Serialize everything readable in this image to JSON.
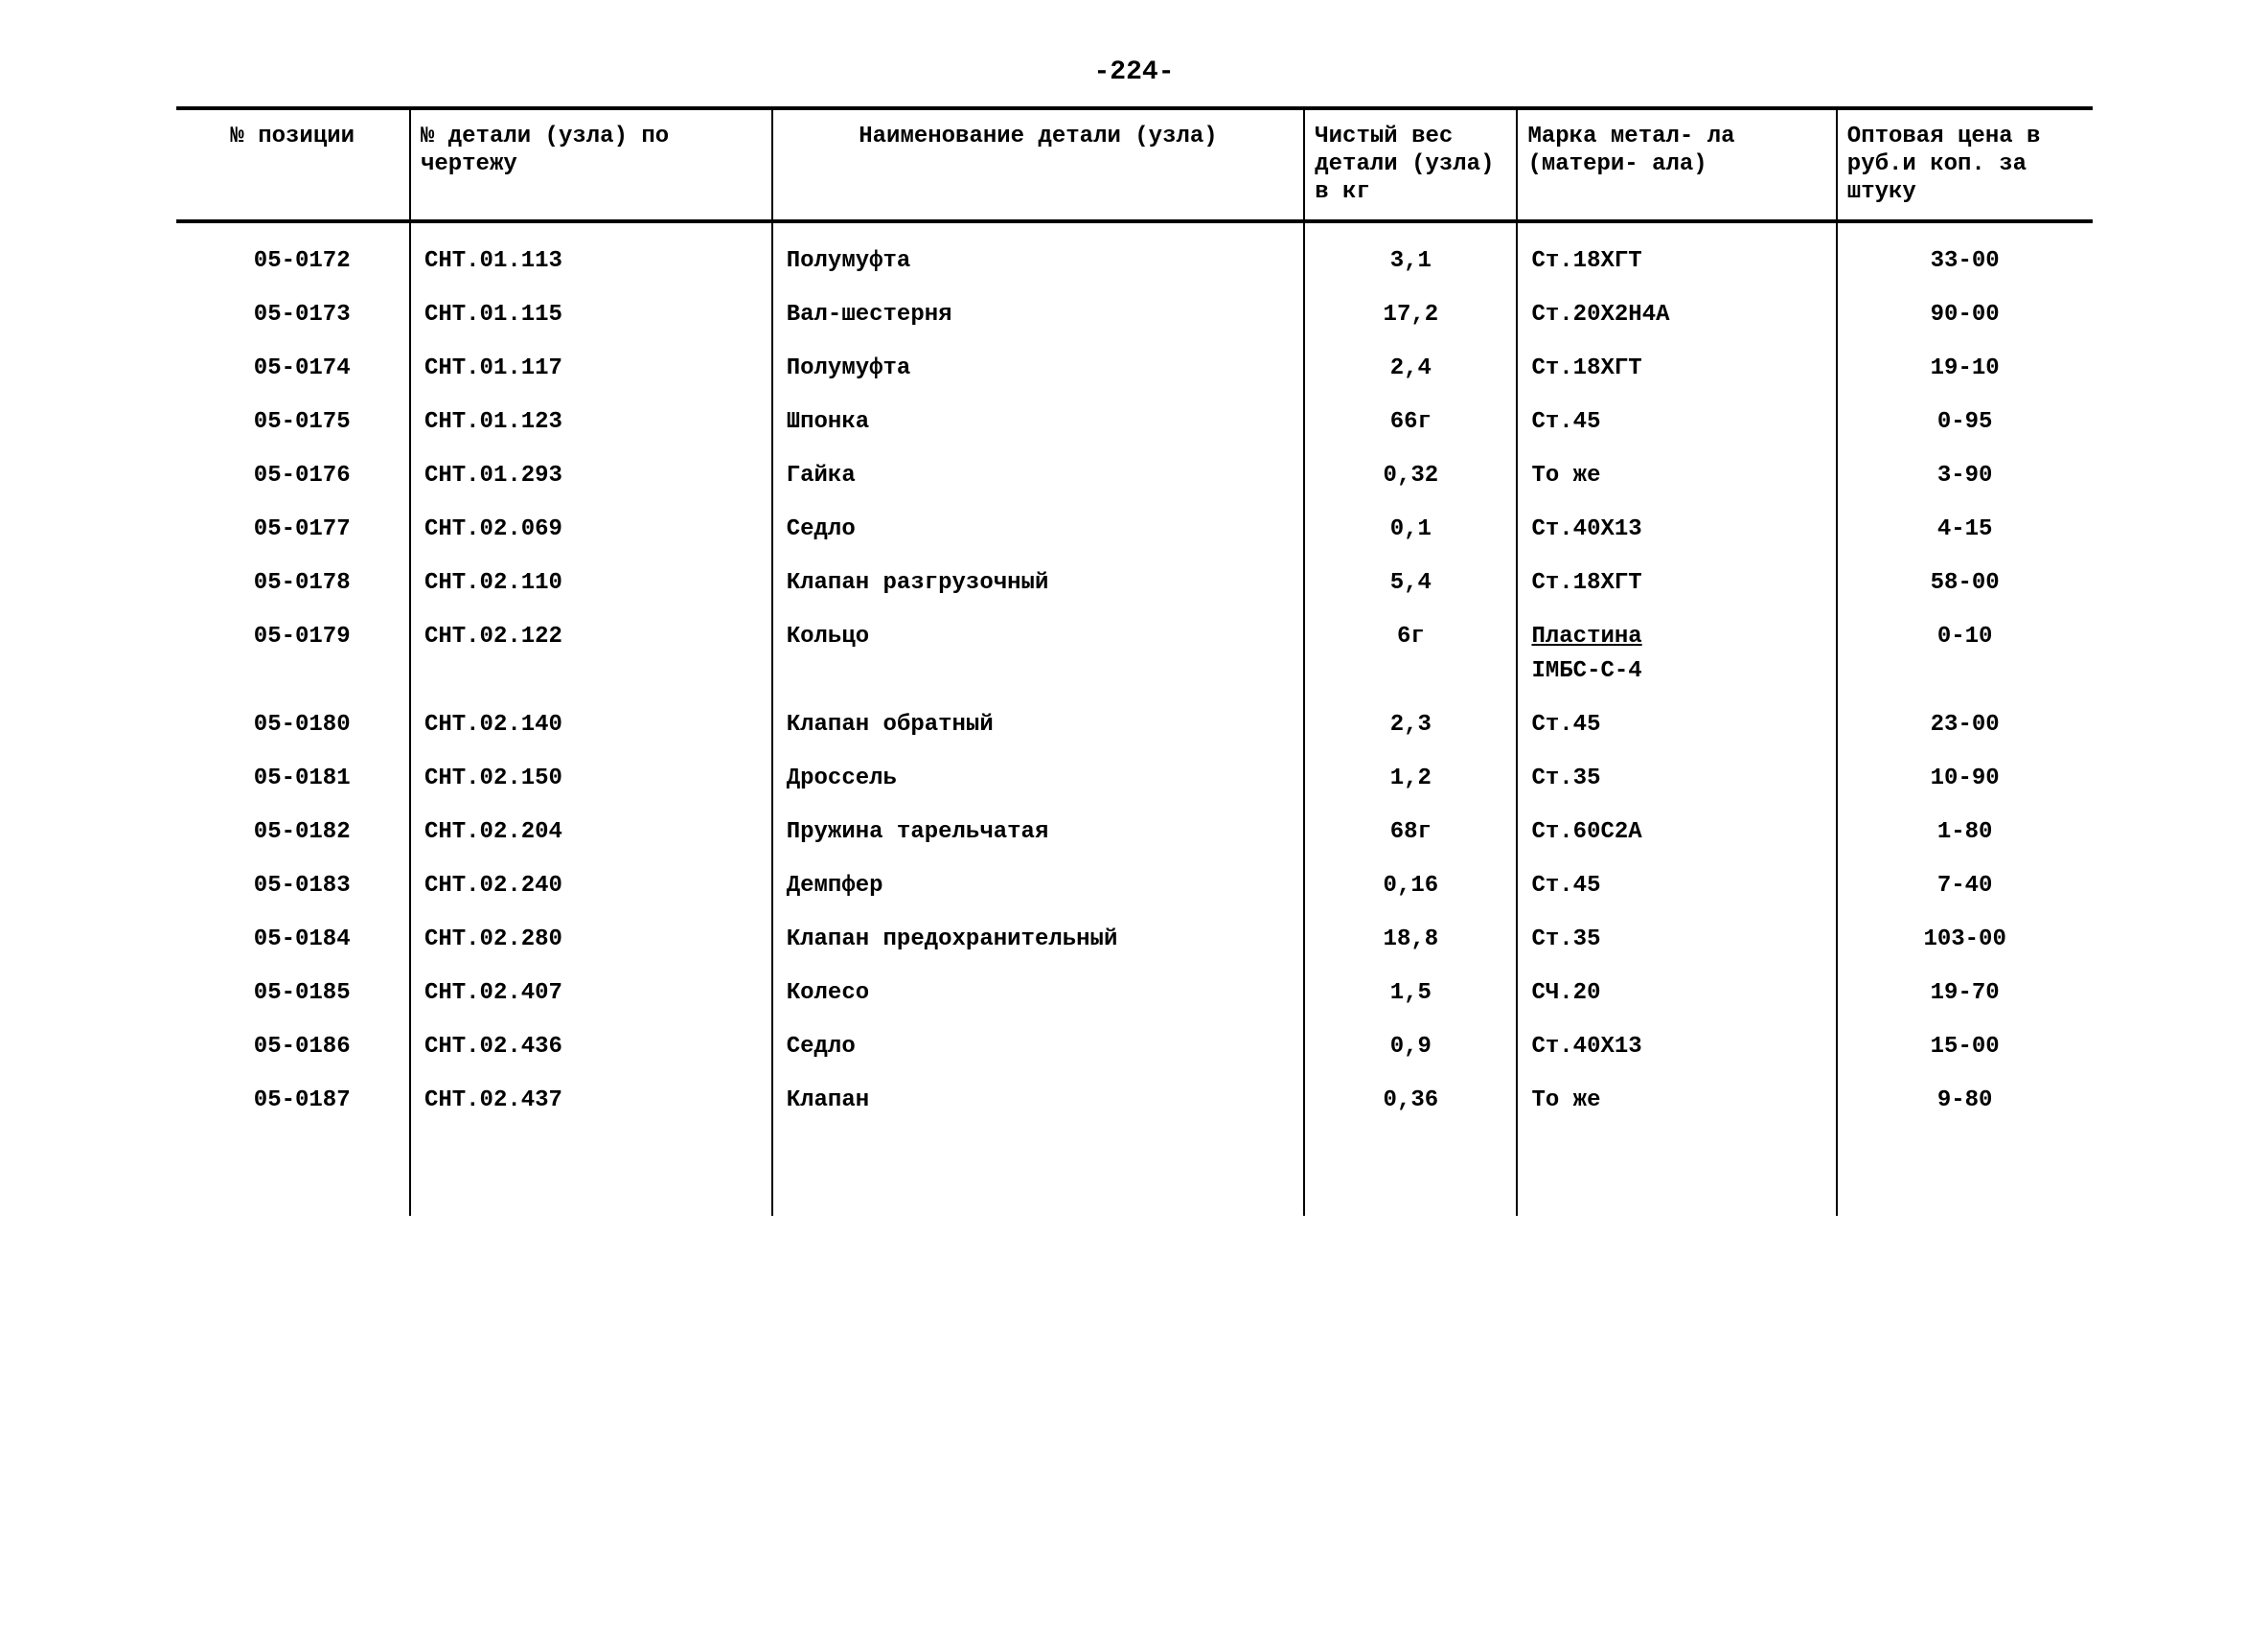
{
  "page_number": "-224-",
  "table": {
    "background_color": "#ffffff",
    "text_color": "#000000",
    "border_color": "#000000",
    "font_family": "Courier New",
    "font_size_pt": 18,
    "header_fontsize_pt": 18,
    "columns": [
      {
        "key": "col1",
        "header": "№\nпозиции",
        "align": "center",
        "width_pct": 11
      },
      {
        "key": "col2",
        "header": "№ детали (узла) по\nчертежу",
        "align": "left",
        "width_pct": 17
      },
      {
        "key": "col3",
        "header": "Наименование детали\n(узла)",
        "align": "center",
        "width_pct": 25
      },
      {
        "key": "col4",
        "header": "Чистый\nвес\nдетали\n(узла) в\nкг",
        "align": "left",
        "width_pct": 10
      },
      {
        "key": "col5",
        "header": "Марка метал-\nла (матери-\nала)",
        "align": "left",
        "width_pct": 15
      },
      {
        "key": "col6",
        "header": "Оптовая\nцена в\nруб.и коп.\nза штуку",
        "align": "left",
        "width_pct": 12
      }
    ],
    "rows": [
      {
        "col1": "05-0172",
        "col2": "СНТ.01.113",
        "col3": "Полумуфта",
        "col4": "3,1",
        "col5": "Ст.18ХГТ",
        "col6": "33-00"
      },
      {
        "col1": "05-0173",
        "col2": "СНТ.01.115",
        "col3": "Вал-шестерня",
        "col4": "17,2",
        "col5": "Ст.20Х2Н4А",
        "col6": "90-00"
      },
      {
        "col1": "05-0174",
        "col2": "СНТ.01.117",
        "col3": "Полумуфта",
        "col4": "2,4",
        "col5": "Ст.18ХГТ",
        "col6": "19-10"
      },
      {
        "col1": "05-0175",
        "col2": "СНТ.01.123",
        "col3": "Шпонка",
        "col4": "66г",
        "col5": "Ст.45",
        "col6": "0-95"
      },
      {
        "col1": "05-0176",
        "col2": "СНТ.01.293",
        "col3": "Гайка",
        "col4": "0,32",
        "col5": "То же",
        "col6": "3-90"
      },
      {
        "col1": "05-0177",
        "col2": "СНТ.02.069",
        "col3": "Седло",
        "col4": "0,1",
        "col5": "Ст.40Х13",
        "col6": "4-15"
      },
      {
        "col1": "05-0178",
        "col2": "СНТ.02.110",
        "col3": "Клапан разгрузочный",
        "col4": "5,4",
        "col5": "Ст.18ХГТ",
        "col6": "58-00"
      },
      {
        "col1": "05-0179",
        "col2": "СНТ.02.122",
        "col3": "Кольцо",
        "col4": "6г",
        "col5": "Пластина\nІМБС-С-4",
        "col5_underline_first": true,
        "col6": "0-10"
      },
      {
        "col1": "05-0180",
        "col2": "СНТ.02.140",
        "col3": "Клапан обратный",
        "col4": "2,3",
        "col5": "Ст.45",
        "col6": "23-00"
      },
      {
        "col1": "05-0181",
        "col2": "СНТ.02.150",
        "col3": "Дроссель",
        "col4": "1,2",
        "col5": "Ст.35",
        "col6": "10-90"
      },
      {
        "col1": "05-0182",
        "col2": "СНТ.02.204",
        "col3": "Пружина тарельчатая",
        "col4": "68г",
        "col5": "Ст.60С2А",
        "col6": "1-80"
      },
      {
        "col1": "05-0183",
        "col2": "СНТ.02.240",
        "col3": "Демпфер",
        "col4": "0,16",
        "col5": "Ст.45",
        "col6": "7-40"
      },
      {
        "col1": "05-0184",
        "col2": "СНТ.02.280",
        "col3": "Клапан предохранительный",
        "col4": "18,8",
        "col5": "Ст.35",
        "col6": "103-00"
      },
      {
        "col1": "05-0185",
        "col2": "СНТ.02.407",
        "col3": "Колесо",
        "col4": "1,5",
        "col5": "СЧ.20",
        "col6": "19-70"
      },
      {
        "col1": "05-0186",
        "col2": "СНТ.02.436",
        "col3": "Седло",
        "col4": "0,9",
        "col5": "Ст.40Х13",
        "col6": "15-00"
      },
      {
        "col1": "05-0187",
        "col2": "СНТ.02.437",
        "col3": "Клапан",
        "col4": "0,36",
        "col5": "То же",
        "col6": "9-80"
      }
    ]
  }
}
